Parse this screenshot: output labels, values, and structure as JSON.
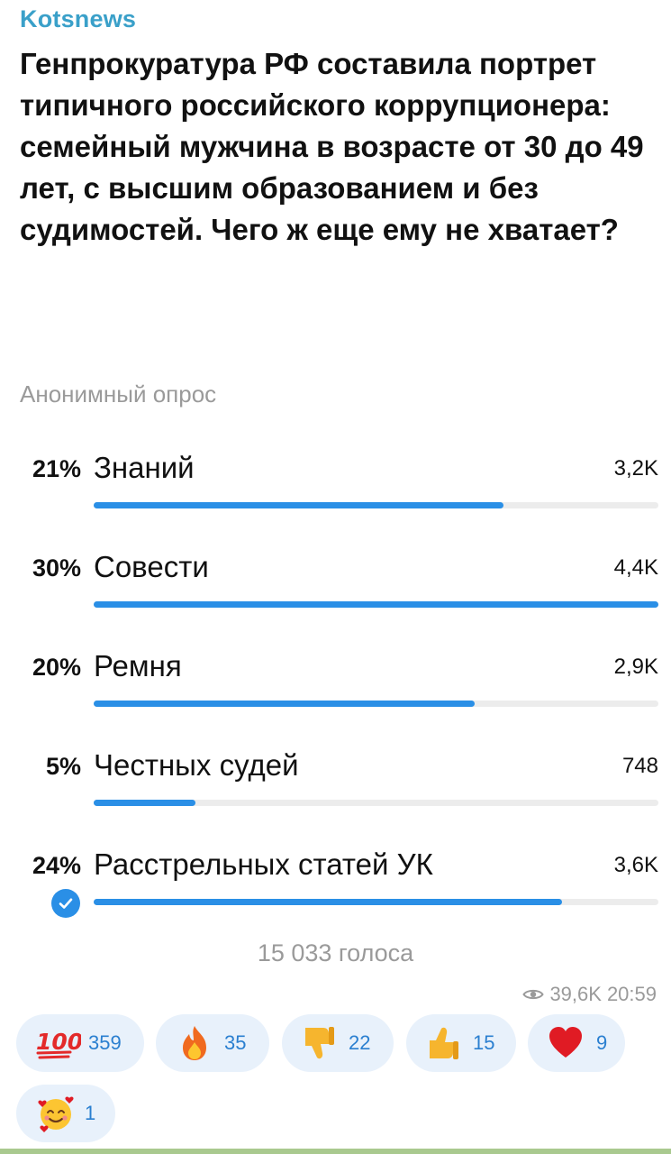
{
  "channel": "Kotsnews",
  "question": "Генпрокуратура РФ составила портрет типичного российского коррупционера: семейный мужчина в возрасте от 30 до 49 лет, с высшим образованием и без судимостей. Чего ж еще ему не хватает?",
  "poll_type": "Анонимный опрос",
  "options": [
    {
      "percent": "21%",
      "label": "Знаний",
      "count": "3,2K",
      "fill_fraction": 0.725
    },
    {
      "percent": "30%",
      "label": "Совести",
      "count": "4,4K",
      "fill_fraction": 1.0
    },
    {
      "percent": "20%",
      "label": "Ремня",
      "count": "2,9K",
      "fill_fraction": 0.675
    },
    {
      "percent": "5%",
      "label": "Честных судей",
      "count": "748",
      "fill_fraction": 0.18
    },
    {
      "percent": "24%",
      "label": "Расстрельных статей УК",
      "count": "3,6K",
      "fill_fraction": 0.83,
      "selected": true
    }
  ],
  "total_votes": "15 033 голоса",
  "views": "39,6K",
  "time": "20:59",
  "reactions": [
    {
      "emoji": "hundred-points",
      "count": "359"
    },
    {
      "emoji": "fire",
      "count": "35"
    },
    {
      "emoji": "thumbs-down",
      "count": "22"
    },
    {
      "emoji": "thumbs-up",
      "count": "15"
    },
    {
      "emoji": "red-heart",
      "count": "9"
    },
    {
      "emoji": "smiling-face-with-hearts",
      "count": "1"
    }
  ],
  "colors": {
    "accent": "#2a8fe6",
    "channel": "#3aa0c9",
    "muted": "#9a9a9a",
    "track": "#ececec",
    "reaction_bg": "#e8f1fb"
  }
}
